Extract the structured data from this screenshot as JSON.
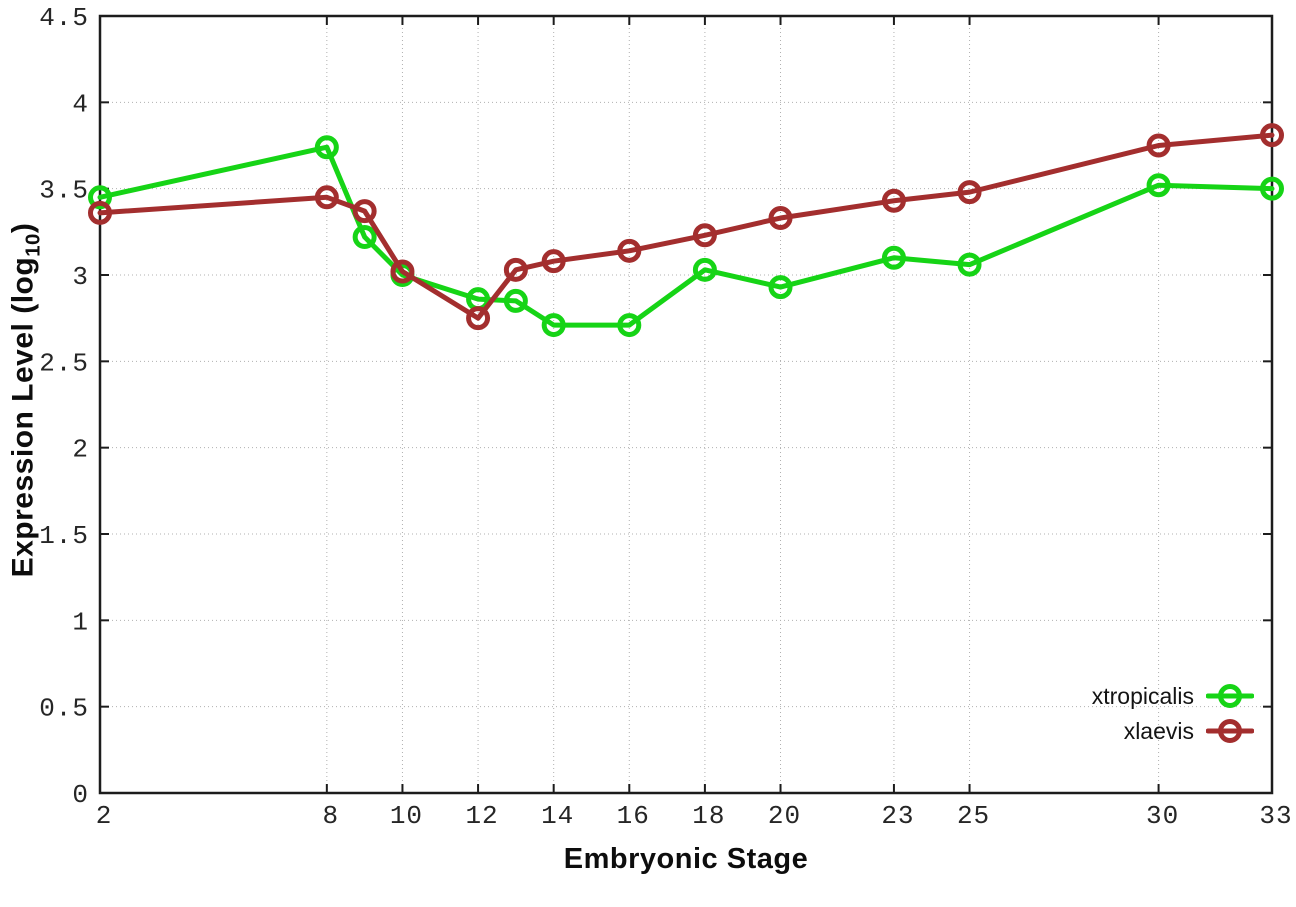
{
  "chart_data": {
    "type": "line",
    "title": "",
    "xlabel": "Embryonic Stage",
    "ylabel": "Expression Level (log10)",
    "ylabel_main": "Expression Level (log",
    "ylabel_sub": "10",
    "ylabel_close": ")",
    "x": [
      2,
      8,
      9,
      10,
      12,
      13,
      14,
      16,
      18,
      20,
      23,
      25,
      30,
      33
    ],
    "series": [
      {
        "name": "xtropicalis",
        "color": "#16d416",
        "marker": "open-circle",
        "values": [
          3.45,
          3.74,
          3.22,
          3.0,
          2.86,
          2.85,
          2.71,
          2.71,
          3.03,
          2.93,
          3.1,
          3.06,
          3.52,
          3.5
        ]
      },
      {
        "name": "xlaevis",
        "color": "#a32e2e",
        "marker": "open-circle",
        "values": [
          3.36,
          3.45,
          3.37,
          3.02,
          2.75,
          3.03,
          3.08,
          3.14,
          3.23,
          3.33,
          3.43,
          3.48,
          3.75,
          3.81
        ]
      }
    ],
    "x_ticks": [
      2,
      8,
      10,
      12,
      14,
      16,
      18,
      20,
      23,
      25,
      30,
      33
    ],
    "y_ticks": [
      0,
      0.5,
      1,
      1.5,
      2,
      2.5,
      3,
      3.5,
      4,
      4.5
    ],
    "xlim": [
      2,
      33
    ],
    "ylim": [
      0,
      4.5
    ],
    "grid": true,
    "legend_position": "bottom-right",
    "axis_color": "#1c1c1c",
    "grid_color": "#b0b0b0",
    "background_color": "#ffffff"
  }
}
